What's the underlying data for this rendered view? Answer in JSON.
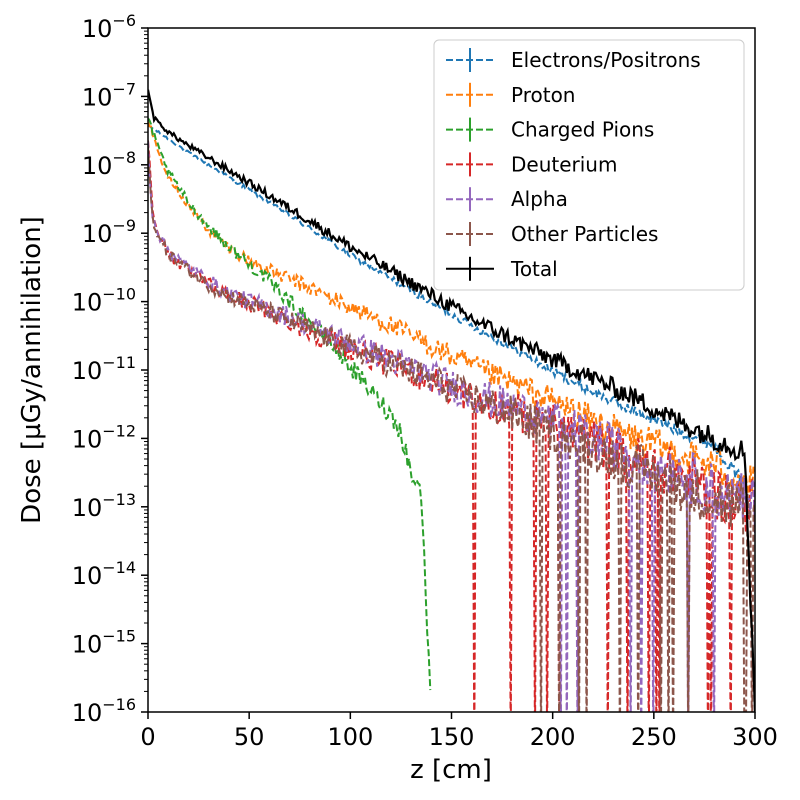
{
  "chart_data": {
    "type": "line",
    "title": "",
    "xlabel": "z [cm]",
    "ylabel": "Dose [µGy/annihilation]",
    "xlim": [
      0,
      300
    ],
    "ylim_exponent": [
      -16,
      -6
    ],
    "y_scale": "log",
    "x_ticks": [
      0,
      50,
      100,
      150,
      200,
      250,
      300
    ],
    "x_tick_labels": [
      "0",
      "50",
      "100",
      "150",
      "200",
      "250",
      "300"
    ],
    "y_ticks": [
      -16,
      -15,
      -14,
      -13,
      -12,
      -11,
      -10,
      -9,
      -8,
      -7,
      -6
    ],
    "y_tick_base": "10",
    "y_tick_exponents": [
      "−16",
      "−15",
      "−14",
      "−13",
      "−12",
      "−11",
      "−10",
      "−9",
      "−8",
      "−7",
      "−6"
    ],
    "legend_position": "top-right",
    "series": [
      {
        "name": "Electrons/Positrons",
        "color": "#1f77b4",
        "dash": "dashed",
        "x": [
          0,
          10,
          20,
          40,
          60,
          80,
          100,
          120,
          140,
          160,
          180,
          200,
          220,
          240,
          260,
          280,
          296
        ],
        "log10_y": [
          -7.42,
          -7.62,
          -7.82,
          -8.18,
          -8.55,
          -8.93,
          -9.32,
          -9.66,
          -10.02,
          -10.35,
          -10.68,
          -11.02,
          -11.32,
          -11.6,
          -11.86,
          -12.1,
          -12.72
        ]
      },
      {
        "name": "Proton",
        "color": "#ff7f0e",
        "dash": "dashed",
        "x": [
          0,
          5,
          10,
          20,
          30,
          40,
          50,
          60,
          80,
          100,
          120,
          140,
          160,
          180,
          200,
          220,
          240,
          260,
          280,
          300
        ],
        "log10_y": [
          -7.35,
          -7.8,
          -8.15,
          -8.6,
          -8.95,
          -9.22,
          -9.4,
          -9.55,
          -9.8,
          -10.08,
          -10.35,
          -10.65,
          -10.95,
          -11.2,
          -11.45,
          -11.75,
          -12.0,
          -12.2,
          -12.4,
          -12.7
        ]
      },
      {
        "name": "Charged Pions",
        "color": "#2ca02c",
        "dash": "dashed",
        "x": [
          0,
          5,
          10,
          20,
          30,
          40,
          50,
          60,
          70,
          80,
          90,
          100,
          110,
          120,
          125,
          130,
          135,
          140
        ],
        "log10_y": [
          -7.3,
          -7.75,
          -8.1,
          -8.55,
          -8.9,
          -9.2,
          -9.45,
          -9.7,
          -10.0,
          -10.3,
          -10.6,
          -10.95,
          -11.3,
          -11.65,
          -11.9,
          -12.5,
          -12.8,
          -16
        ]
      },
      {
        "name": "Deuterium",
        "color": "#d62728",
        "dash": "dashed",
        "x": [
          0,
          2,
          5,
          10,
          20,
          30,
          40,
          50,
          60,
          80,
          100,
          120,
          140,
          160,
          180,
          200,
          220,
          240,
          260,
          280,
          300
        ],
        "log10_y": [
          -7.6,
          -8.6,
          -9.0,
          -9.3,
          -9.55,
          -9.75,
          -9.92,
          -10.02,
          -10.15,
          -10.42,
          -10.68,
          -10.9,
          -11.15,
          -11.4,
          -11.6,
          -11.8,
          -12.05,
          -12.3,
          -12.5,
          -12.8,
          -13.0
        ]
      },
      {
        "name": "Alpha",
        "color": "#9467bd",
        "dash": "dashed",
        "x": [
          0,
          2,
          5,
          10,
          20,
          30,
          40,
          50,
          60,
          80,
          100,
          120,
          140,
          160,
          180,
          200,
          220,
          240,
          260,
          280,
          300
        ],
        "log10_y": [
          -7.7,
          -8.7,
          -9.0,
          -9.25,
          -9.5,
          -9.7,
          -9.88,
          -10.0,
          -10.1,
          -10.35,
          -10.6,
          -10.85,
          -11.1,
          -11.35,
          -11.55,
          -11.75,
          -12.0,
          -12.25,
          -12.45,
          -12.75,
          -13.0
        ]
      },
      {
        "name": "Other Particles",
        "color": "#8c564b",
        "dash": "dashed",
        "x": [
          0,
          2,
          5,
          10,
          20,
          30,
          40,
          50,
          60,
          80,
          100,
          120,
          140,
          160,
          180,
          200,
          220,
          240,
          260,
          280,
          300
        ],
        "log10_y": [
          -7.75,
          -8.75,
          -9.05,
          -9.3,
          -9.55,
          -9.75,
          -9.92,
          -10.03,
          -10.15,
          -10.42,
          -10.68,
          -10.9,
          -11.15,
          -11.4,
          -11.65,
          -11.9,
          -12.15,
          -12.4,
          -12.65,
          -12.9,
          -13.1
        ]
      },
      {
        "name": "Total",
        "color": "#000000",
        "dash": "solid",
        "x": [
          0,
          1,
          3,
          10,
          20,
          40,
          60,
          80,
          100,
          120,
          140,
          160,
          180,
          200,
          220,
          240,
          260,
          280,
          295,
          300
        ],
        "log10_y": [
          -6.88,
          -7.05,
          -7.32,
          -7.52,
          -7.72,
          -8.08,
          -8.45,
          -8.82,
          -9.2,
          -9.55,
          -9.9,
          -10.25,
          -10.55,
          -10.85,
          -11.12,
          -11.4,
          -11.72,
          -12.0,
          -12.2,
          -16
        ]
      }
    ]
  }
}
